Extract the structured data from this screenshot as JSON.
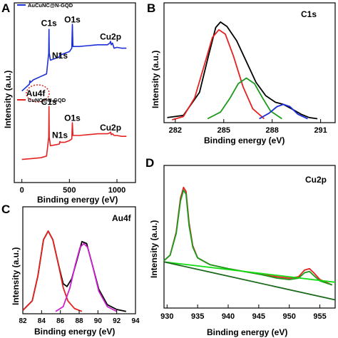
{
  "chart_data": [
    {
      "panel": "A",
      "type": "line",
      "xlabel": "Binding energy (eV)",
      "ylabel": "Intensity (a.u.)",
      "xlim": [
        -20,
        1150
      ],
      "xticks": [
        0,
        500,
        1000
      ],
      "ylim": [
        0,
        10
      ],
      "grid": false,
      "legend_placement": "top-left",
      "annotations": [
        {
          "text": "C1s",
          "x": 285,
          "y": 8.9,
          "series": 0
        },
        {
          "text": "N1s",
          "x": 400,
          "y": 7.0,
          "series": 0
        },
        {
          "text": "O1s",
          "x": 531,
          "y": 9.1,
          "series": 0
        },
        {
          "text": "Cu2p",
          "x": 933,
          "y": 8.1,
          "series": 0
        },
        {
          "text": "Au4f",
          "x": 85,
          "y": 5.0,
          "series": 0,
          "circled": true
        },
        {
          "text": "C1s",
          "x": 285,
          "y": 4.3,
          "series": 1
        },
        {
          "text": "N1s",
          "x": 400,
          "y": 2.35,
          "series": 1
        },
        {
          "text": "O1s",
          "x": 531,
          "y": 3.35,
          "series": 1
        },
        {
          "text": "Cu2p",
          "x": 933,
          "y": 2.8,
          "series": 1
        }
      ],
      "series": [
        {
          "name": "AuCuNC@N-GQD",
          "color": "#1d2fd6",
          "x": [
            0,
            40,
            80,
            84,
            88,
            92,
            120,
            200,
            260,
            282,
            285,
            288,
            300,
            350,
            395,
            400,
            405,
            450,
            500,
            525,
            531,
            537,
            600,
            700,
            800,
            900,
            925,
            933,
            940,
            953,
            970,
            1000,
            1050,
            1100
          ],
          "y": [
            5.1,
            5.3,
            5.5,
            5.7,
            5.6,
            5.6,
            5.75,
            5.95,
            6.1,
            7.3,
            8.7,
            7.3,
            6.9,
            7.0,
            7.1,
            7.25,
            7.2,
            7.3,
            7.4,
            7.6,
            9.0,
            7.7,
            7.7,
            7.75,
            7.8,
            7.8,
            7.9,
            8.0,
            7.8,
            7.9,
            7.6,
            7.65,
            7.6,
            7.6
          ]
        },
        {
          "name": "CuNC@N-GQD",
          "color": "#e52222",
          "x": [
            0,
            100,
            200,
            260,
            282,
            285,
            288,
            300,
            350,
            395,
            400,
            405,
            450,
            500,
            525,
            531,
            537,
            600,
            700,
            800,
            900,
            925,
            933,
            940,
            953,
            970,
            1000,
            1050,
            1100
          ],
          "y": [
            1.1,
            1.15,
            1.2,
            1.3,
            2.4,
            4.2,
            2.4,
            1.9,
            1.95,
            2.0,
            2.15,
            2.1,
            2.1,
            2.2,
            2.3,
            3.25,
            2.5,
            2.5,
            2.55,
            2.6,
            2.6,
            2.65,
            2.7,
            2.55,
            2.6,
            2.5,
            2.5,
            2.45,
            2.45
          ]
        }
      ]
    },
    {
      "panel": "B",
      "type": "line",
      "title": "C1s",
      "xlabel": "Binding energy (eV)",
      "ylabel": "Intensity (a.u.)",
      "xlim": [
        281.3,
        291.9
      ],
      "xticks": [
        282,
        285,
        288,
        291
      ],
      "ylim": [
        0,
        1.0
      ],
      "grid": false,
      "series": [
        {
          "color": "#000000",
          "x": [
            281.5,
            282.5,
            283.5,
            284.0,
            284.5,
            284.8,
            285.2,
            285.8,
            286.4,
            287.0,
            287.6,
            288.2,
            288.7,
            289.2,
            289.8,
            290.3,
            290.8
          ],
          "y": [
            0.02,
            0.04,
            0.25,
            0.55,
            0.84,
            0.89,
            0.85,
            0.72,
            0.53,
            0.34,
            0.22,
            0.16,
            0.14,
            0.1,
            0.05,
            0.02,
            0.01
          ]
        },
        {
          "color": "#e52222",
          "x": [
            281.8,
            282.5,
            283.2,
            283.8,
            284.3,
            284.7,
            285.1,
            285.6,
            286.2,
            286.8,
            287.5
          ],
          "y": [
            0.0,
            0.03,
            0.2,
            0.5,
            0.75,
            0.82,
            0.78,
            0.58,
            0.3,
            0.1,
            0.01
          ]
        },
        {
          "color": "#1a9a1a",
          "x": [
            284.0,
            284.8,
            285.4,
            285.9,
            286.4,
            286.9,
            287.4,
            287.9,
            288.6
          ],
          "y": [
            0.01,
            0.07,
            0.2,
            0.33,
            0.38,
            0.33,
            0.2,
            0.08,
            0.01
          ]
        },
        {
          "color": "#1d2fd6",
          "x": [
            287.2,
            287.8,
            288.3,
            288.7,
            289.1,
            289.6,
            290.2
          ],
          "y": [
            0.01,
            0.06,
            0.12,
            0.14,
            0.12,
            0.05,
            0.01
          ]
        }
      ]
    },
    {
      "panel": "C",
      "type": "line",
      "title": "Au4f",
      "xlabel": "Binding energy (eV)",
      "ylabel": "Intensity (a.u.)",
      "xlim": [
        82,
        94
      ],
      "xticks": [
        82,
        84,
        86,
        88,
        90,
        92,
        94
      ],
      "ylim": [
        0,
        1.0
      ],
      "grid": false,
      "series": [
        {
          "color": "#000000",
          "x": [
            82,
            83,
            83.6,
            84.2,
            84.7,
            85.2,
            85.8,
            86.3,
            86.7,
            87.2,
            87.8,
            88.3,
            88.8,
            89.4,
            90.1,
            91,
            92,
            93
          ],
          "y": [
            0.02,
            0.12,
            0.38,
            0.76,
            0.85,
            0.76,
            0.5,
            0.3,
            0.27,
            0.35,
            0.56,
            0.74,
            0.72,
            0.5,
            0.24,
            0.08,
            0.03,
            0.01
          ]
        },
        {
          "color": "#e52222",
          "x": [
            82,
            83,
            83.6,
            84.2,
            84.7,
            85.2,
            85.8,
            86.3,
            86.8,
            87.5,
            88.3
          ],
          "y": [
            0.02,
            0.12,
            0.38,
            0.76,
            0.85,
            0.76,
            0.5,
            0.26,
            0.12,
            0.04,
            0.01
          ]
        },
        {
          "color": "#cc22cc",
          "x": [
            85.5,
            86.3,
            87.0,
            87.6,
            88.1,
            88.5,
            88.9,
            89.4,
            90.1,
            91.0,
            92.0
          ],
          "y": [
            0.01,
            0.06,
            0.25,
            0.5,
            0.68,
            0.72,
            0.68,
            0.5,
            0.22,
            0.06,
            0.01
          ]
        }
      ]
    },
    {
      "panel": "D",
      "type": "line",
      "title": "Cu2p",
      "xlabel": "Binding energy (eV)",
      "ylabel": "Intensity (a.u.)",
      "xlim": [
        929.5,
        957.5
      ],
      "xticks": [
        930,
        935,
        940,
        945,
        950,
        955
      ],
      "ylim": [
        0,
        1.0
      ],
      "grid": false,
      "series": [
        {
          "color": "#e52222",
          "x": [
            929.5,
            930.5,
            931.5,
            932.2,
            932.7,
            933.1,
            933.6,
            934.2,
            935,
            937,
            940,
            945,
            948,
            950,
            951.5,
            952.5,
            953.3,
            954,
            955,
            957
          ],
          "y": [
            0.34,
            0.38,
            0.55,
            0.8,
            0.88,
            0.85,
            0.62,
            0.45,
            0.36,
            0.31,
            0.28,
            0.24,
            0.22,
            0.21,
            0.22,
            0.27,
            0.28,
            0.25,
            0.2,
            0.16
          ]
        },
        {
          "color": "#1a9a1a",
          "x": [
            929.5,
            930.5,
            931.5,
            932.2,
            932.7,
            933.1,
            933.6,
            934.2,
            935,
            937,
            940,
            945,
            948,
            950,
            951.5,
            952.5,
            953.3,
            954,
            955,
            957
          ],
          "y": [
            0.34,
            0.38,
            0.54,
            0.78,
            0.86,
            0.83,
            0.6,
            0.44,
            0.36,
            0.31,
            0.28,
            0.24,
            0.21,
            0.2,
            0.21,
            0.25,
            0.26,
            0.23,
            0.19,
            0.16
          ]
        },
        {
          "color": "#11dd11",
          "x": [
            929.5,
            957.5
          ],
          "y": [
            0.33,
            0.18
          ]
        },
        {
          "color": "#1a6a1a",
          "x": [
            929.5,
            957.5
          ],
          "y": [
            0.33,
            0.05
          ]
        }
      ]
    }
  ]
}
